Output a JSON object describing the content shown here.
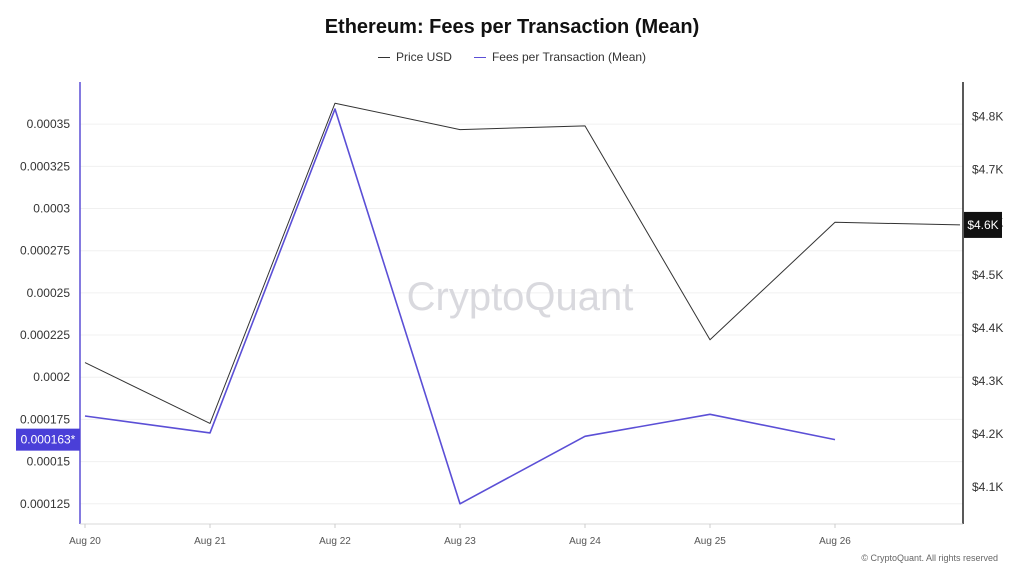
{
  "chart_data": {
    "type": "line",
    "title": "Ethereum: Fees per Transaction (Mean)",
    "categories": [
      "Aug 20",
      "Aug 21",
      "Aug 22",
      "Aug 23",
      "Aug 24",
      "Aug 25",
      "Aug 26",
      ""
    ],
    "y_left": {
      "range": [
        0.000113,
        0.000375
      ],
      "ticks": [
        0.000125,
        0.00015,
        0.000175,
        0.0002,
        0.000225,
        0.00025,
        0.000275,
        0.0003,
        0.000325,
        0.00035
      ],
      "tick_labels": [
        "0.000125",
        "0.00015",
        "0.000175",
        "0.0002",
        "0.000225",
        "0.00025",
        "0.000275",
        "0.0003",
        "0.000325",
        "0.00035"
      ]
    },
    "y_right": {
      "range": [
        4030,
        4865
      ],
      "ticks": [
        4100,
        4200,
        4300,
        4400,
        4500,
        4600,
        4700,
        4800
      ],
      "tick_labels": [
        "$4.1K",
        "$4.2K",
        "$4.3K",
        "$4.4K",
        "$4.5K",
        "$4.6K",
        "$4.7K",
        "$4.8K"
      ]
    },
    "series": [
      {
        "name": "Price USD",
        "axis": "right",
        "color": "#333333",
        "values": [
          4335,
          4220,
          4825,
          4775,
          4782,
          4378,
          4600,
          4595
        ]
      },
      {
        "name": "Fees per Transaction (Mean)",
        "axis": "left",
        "color": "#5b4fd6",
        "values": [
          0.000177,
          0.000167,
          0.000359,
          0.000125,
          0.000165,
          0.000178,
          0.000163,
          null
        ]
      }
    ],
    "current_value_labels": {
      "left": "0.000163*",
      "right": "$4.6K"
    },
    "grid": "horizontal",
    "legend_position": "top-center",
    "watermark": "CryptoQuant"
  },
  "footer": {
    "copyright": "© CryptoQuant. All rights reserved"
  }
}
